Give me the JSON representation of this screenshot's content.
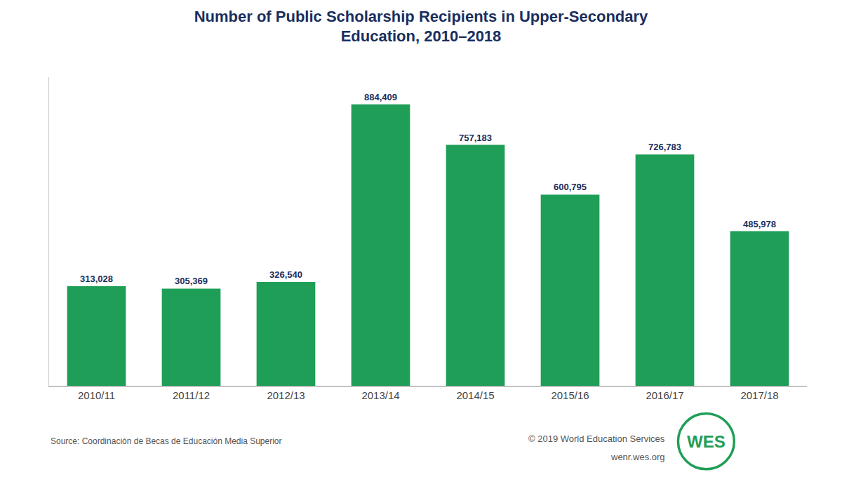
{
  "chart_data": {
    "type": "bar",
    "title": "Number of Public Scholarship Recipients in Upper-Secondary\nEducation, 2010–2018",
    "categories": [
      "2010/11",
      "2011/12",
      "2012/13",
      "2013/14",
      "2014/15",
      "2015/16",
      "2016/17",
      "2017/18"
    ],
    "values": [
      313028,
      305369,
      326540,
      884409,
      757183,
      600795,
      726783,
      485978
    ],
    "value_labels": [
      "313,028",
      "305,369",
      "326,540",
      "884,409",
      "757,183",
      "600,795",
      "726,783",
      "485,978"
    ],
    "data_labels": true,
    "color": "#1f9e57",
    "ylim": [
      0,
      970000
    ],
    "grid": false,
    "tick_labels": "x",
    "annotations": [
      {
        "text": "Source: Coordinación de Becas de Educación Media Superior"
      },
      {
        "text": "© 2019 World Education Services"
      },
      {
        "text": "wenr.wes.org"
      },
      {
        "text": "WES"
      }
    ]
  }
}
